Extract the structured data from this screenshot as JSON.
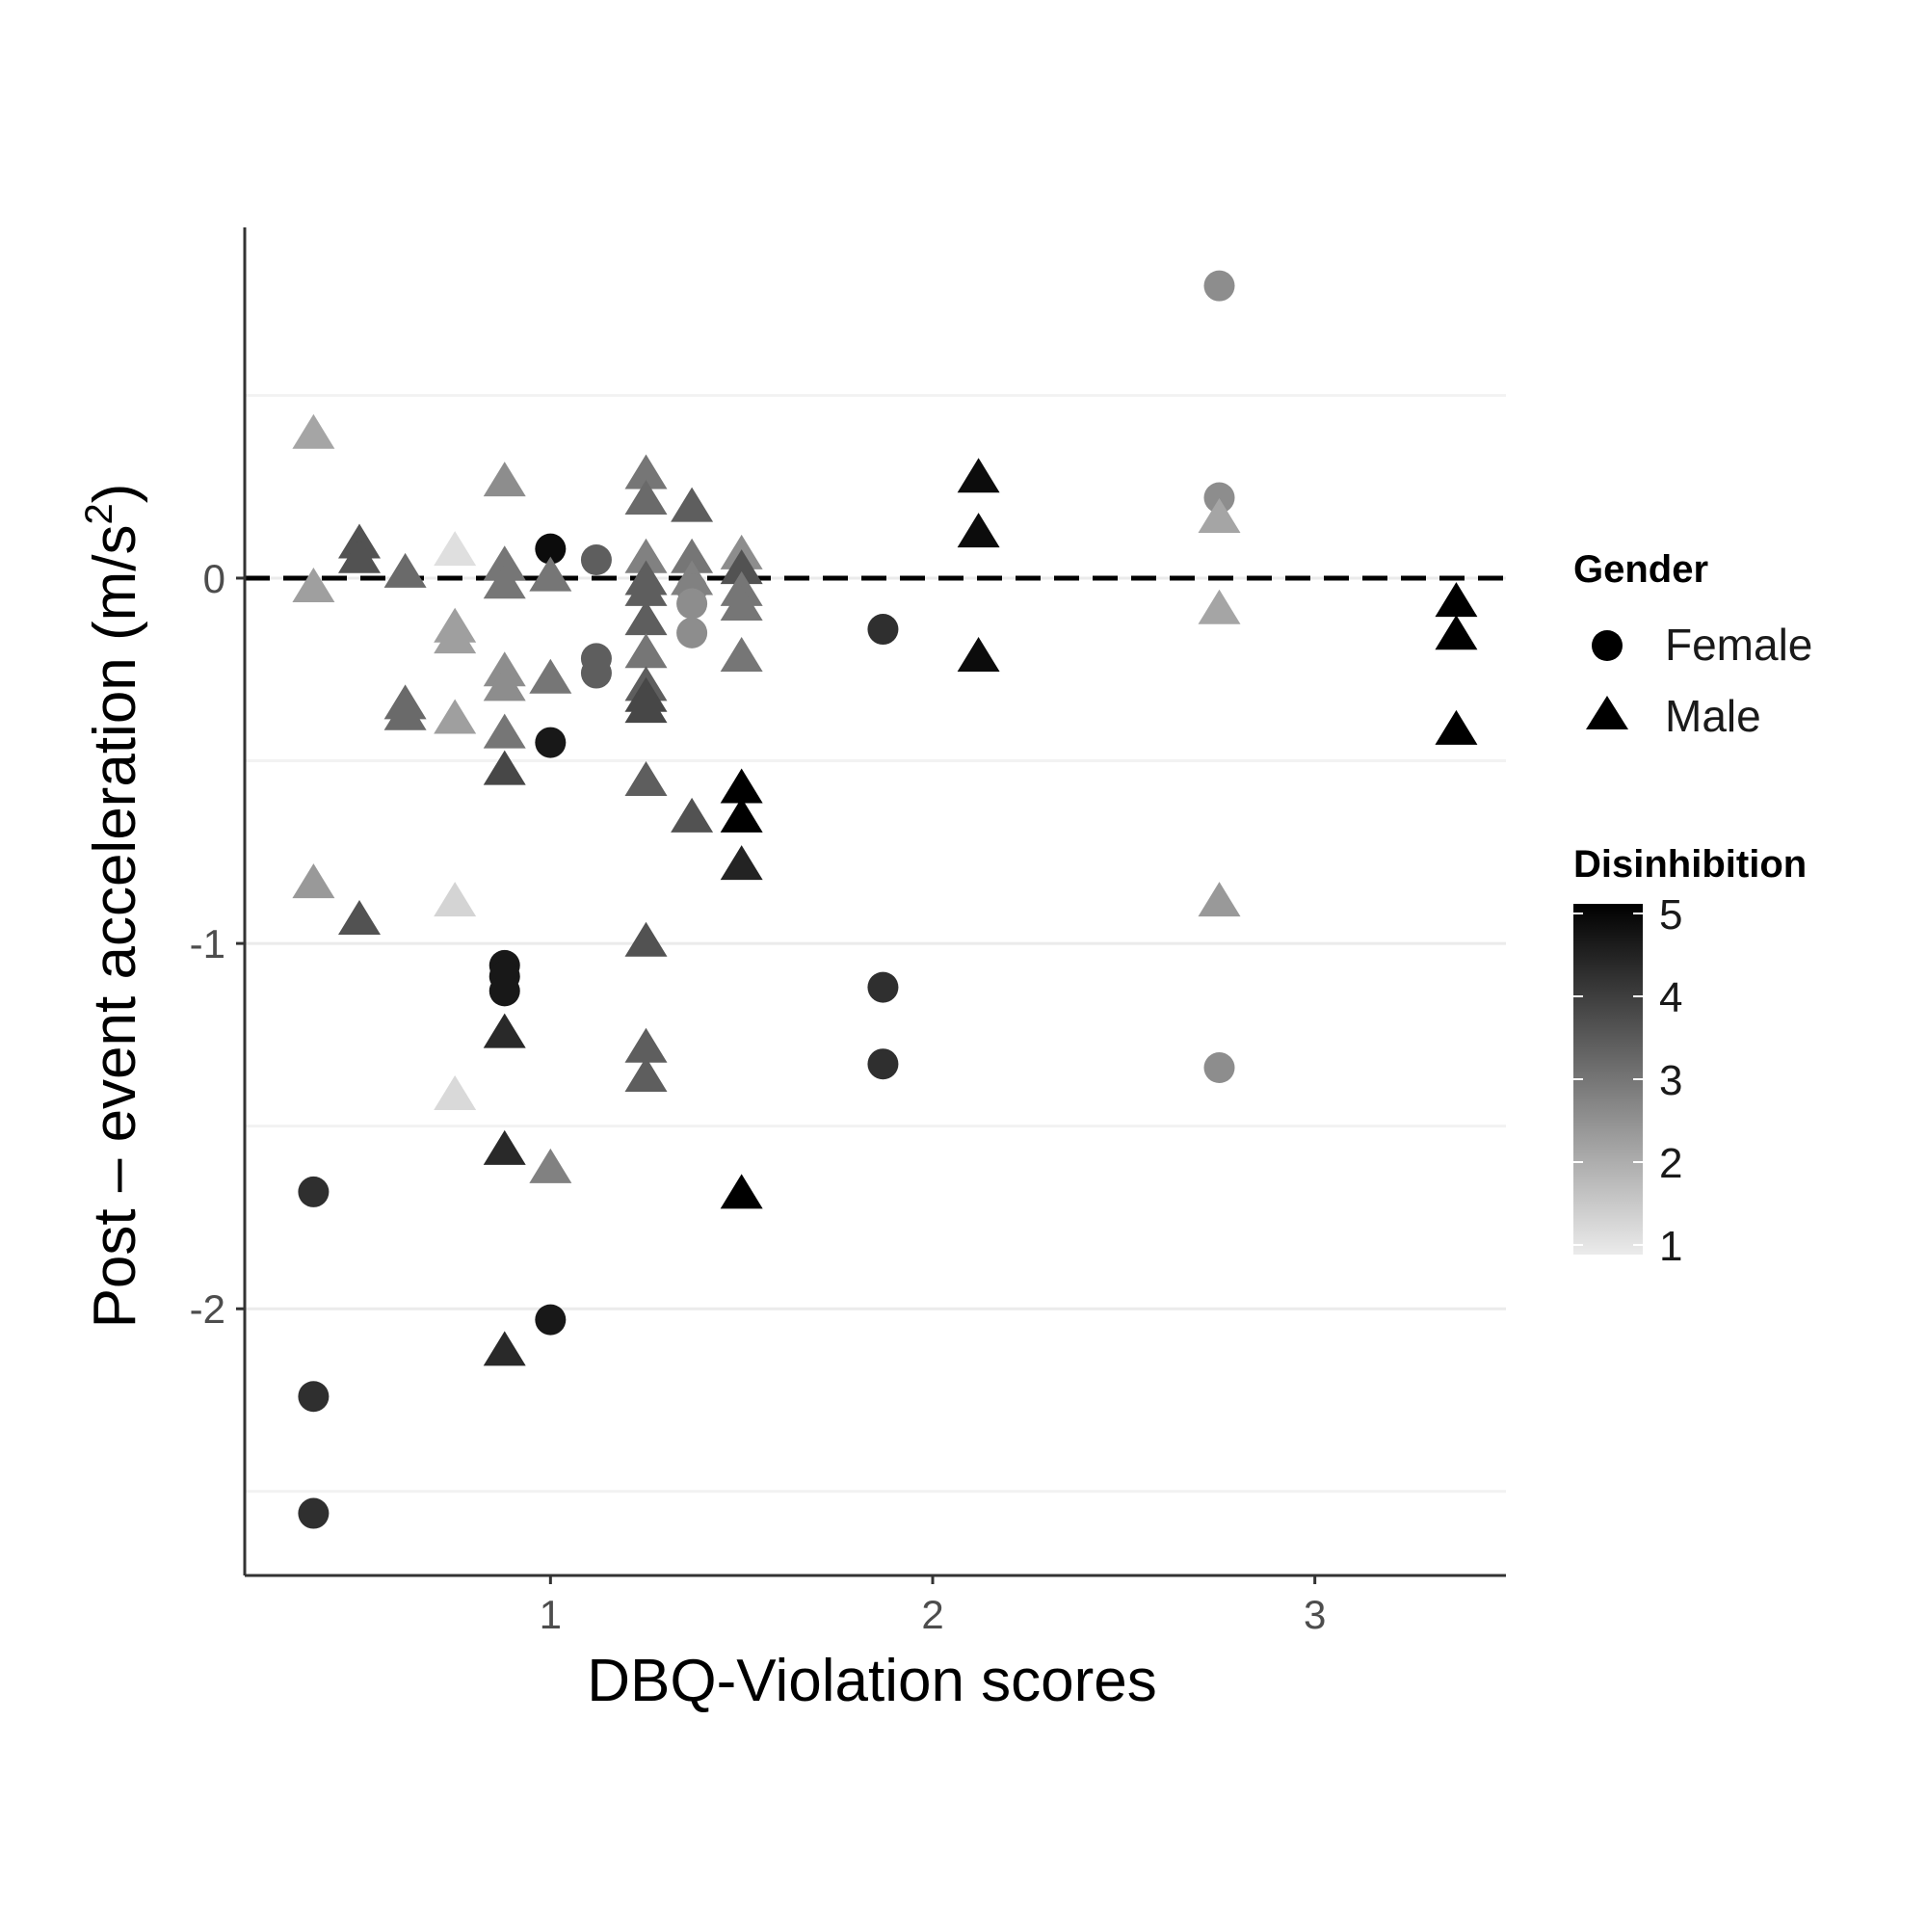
{
  "chart_data": {
    "type": "scatter",
    "title": "",
    "xlabel": "DBQ-Violation scores",
    "ylabel_main": "Post – event acceleration (m/s",
    "ylabel_sup": "2",
    "ylabel_close": ")",
    "xlim": [
      0.2,
      3.5
    ],
    "ylim": [
      -2.73,
      0.96
    ],
    "x_ticks": [
      1,
      2,
      3
    ],
    "x_tick_labels": [
      "1",
      "2",
      "3"
    ],
    "y_ticks": [
      0,
      -1,
      -2
    ],
    "y_tick_labels": [
      "0",
      "-1",
      "-2"
    ],
    "y_minor_gridlines": [
      0.5,
      -0.5,
      -1.5,
      -2.5
    ],
    "reference_line": {
      "y": 0,
      "style": "dashed"
    },
    "grid": "horizontal only",
    "legend_placement": "right",
    "legend": {
      "shape_title": "Gender",
      "shape_items": [
        {
          "label": "Female",
          "shape": "circle"
        },
        {
          "label": "Male",
          "shape": "triangle"
        }
      ],
      "color_title": "Disinhibition",
      "color_ticks": [
        "5",
        "4",
        "3",
        "2",
        "1"
      ],
      "color_range": [
        1,
        5
      ],
      "color_low": "#ebebeb",
      "color_high": "#000000"
    },
    "points": [
      {
        "x": 0.38,
        "y": 0.39,
        "g": "Male",
        "d": 2.2
      },
      {
        "x": 0.38,
        "y": -0.03,
        "g": "Male",
        "d": 2.3
      },
      {
        "x": 0.38,
        "y": -0.84,
        "g": "Male",
        "d": 2.4
      },
      {
        "x": 0.38,
        "y": -1.68,
        "g": "Female",
        "d": 4.2
      },
      {
        "x": 0.38,
        "y": -2.24,
        "g": "Female",
        "d": 4.2
      },
      {
        "x": 0.38,
        "y": -2.56,
        "g": "Female",
        "d": 4.2
      },
      {
        "x": 0.5,
        "y": 0.09,
        "g": "Male",
        "d": 3.6
      },
      {
        "x": 0.5,
        "y": 0.05,
        "g": "Male",
        "d": 3.6
      },
      {
        "x": 0.5,
        "y": -0.94,
        "g": "Male",
        "d": 3.6
      },
      {
        "x": 0.62,
        "y": 0.01,
        "g": "Male",
        "d": 3.2
      },
      {
        "x": 0.62,
        "y": -0.35,
        "g": "Male",
        "d": 3.2
      },
      {
        "x": 0.62,
        "y": -0.38,
        "g": "Male",
        "d": 3.2
      },
      {
        "x": 0.75,
        "y": 0.07,
        "g": "Male",
        "d": 1.2
      },
      {
        "x": 0.75,
        "y": -0.14,
        "g": "Male",
        "d": 2.3
      },
      {
        "x": 0.75,
        "y": -0.17,
        "g": "Male",
        "d": 2.3
      },
      {
        "x": 0.75,
        "y": -0.39,
        "g": "Male",
        "d": 2.3
      },
      {
        "x": 0.75,
        "y": -0.89,
        "g": "Male",
        "d": 1.4
      },
      {
        "x": 0.75,
        "y": -1.42,
        "g": "Male",
        "d": 1.3
      },
      {
        "x": 0.88,
        "y": 0.26,
        "g": "Male",
        "d": 2.6
      },
      {
        "x": 0.88,
        "y": 0.03,
        "g": "Male",
        "d": 3.0
      },
      {
        "x": 0.88,
        "y": -0.02,
        "g": "Male",
        "d": 3.0
      },
      {
        "x": 0.88,
        "y": -0.26,
        "g": "Male",
        "d": 2.6
      },
      {
        "x": 0.88,
        "y": -0.3,
        "g": "Male",
        "d": 2.6
      },
      {
        "x": 0.88,
        "y": -0.43,
        "g": "Male",
        "d": 3.0
      },
      {
        "x": 0.88,
        "y": -0.53,
        "g": "Male",
        "d": 3.8
      },
      {
        "x": 0.88,
        "y": -1.06,
        "g": "Female",
        "d": 4.6
      },
      {
        "x": 0.88,
        "y": -1.09,
        "g": "Female",
        "d": 4.6
      },
      {
        "x": 0.88,
        "y": -1.13,
        "g": "Female",
        "d": 4.6
      },
      {
        "x": 0.88,
        "y": -1.25,
        "g": "Male",
        "d": 4.3
      },
      {
        "x": 0.88,
        "y": -1.57,
        "g": "Male",
        "d": 4.3
      },
      {
        "x": 0.88,
        "y": -2.12,
        "g": "Male",
        "d": 4.3
      },
      {
        "x": 1.0,
        "y": 0.08,
        "g": "Female",
        "d": 4.8
      },
      {
        "x": 1.0,
        "y": 0.0,
        "g": "Male",
        "d": 3.0
      },
      {
        "x": 1.0,
        "y": -0.28,
        "g": "Male",
        "d": 3.0
      },
      {
        "x": 1.0,
        "y": -0.45,
        "g": "Female",
        "d": 4.6
      },
      {
        "x": 1.0,
        "y": -1.62,
        "g": "Male",
        "d": 2.8
      },
      {
        "x": 1.0,
        "y": -2.03,
        "g": "Female",
        "d": 4.6
      },
      {
        "x": 1.12,
        "y": 0.05,
        "g": "Female",
        "d": 3.4
      },
      {
        "x": 1.12,
        "y": -0.22,
        "g": "Female",
        "d": 3.4
      },
      {
        "x": 1.12,
        "y": -0.26,
        "g": "Female",
        "d": 3.4
      },
      {
        "x": 1.25,
        "y": 0.28,
        "g": "Male",
        "d": 3.0
      },
      {
        "x": 1.25,
        "y": 0.21,
        "g": "Male",
        "d": 3.2
      },
      {
        "x": 1.25,
        "y": 0.05,
        "g": "Male",
        "d": 2.8
      },
      {
        "x": 1.25,
        "y": -0.01,
        "g": "Male",
        "d": 3.4
      },
      {
        "x": 1.25,
        "y": -0.04,
        "g": "Male",
        "d": 3.4
      },
      {
        "x": 1.25,
        "y": -0.12,
        "g": "Male",
        "d": 3.4
      },
      {
        "x": 1.25,
        "y": -0.21,
        "g": "Male",
        "d": 3.0
      },
      {
        "x": 1.25,
        "y": -0.3,
        "g": "Male",
        "d": 3.4
      },
      {
        "x": 1.25,
        "y": -0.33,
        "g": "Male",
        "d": 3.8
      },
      {
        "x": 1.25,
        "y": -0.36,
        "g": "Male",
        "d": 3.8
      },
      {
        "x": 1.25,
        "y": -0.56,
        "g": "Male",
        "d": 3.4
      },
      {
        "x": 1.25,
        "y": -1.0,
        "g": "Male",
        "d": 3.6
      },
      {
        "x": 1.25,
        "y": -1.29,
        "g": "Male",
        "d": 3.4
      },
      {
        "x": 1.25,
        "y": -1.37,
        "g": "Male",
        "d": 3.4
      },
      {
        "x": 1.37,
        "y": 0.19,
        "g": "Male",
        "d": 3.4
      },
      {
        "x": 1.37,
        "y": 0.05,
        "g": "Male",
        "d": 3.0
      },
      {
        "x": 1.37,
        "y": -0.01,
        "g": "Male",
        "d": 2.8
      },
      {
        "x": 1.37,
        "y": -0.03,
        "g": "Female",
        "d": 2.8
      },
      {
        "x": 1.37,
        "y": -0.07,
        "g": "Female",
        "d": 2.6
      },
      {
        "x": 1.37,
        "y": -0.15,
        "g": "Female",
        "d": 2.6
      },
      {
        "x": 1.37,
        "y": -0.66,
        "g": "Male",
        "d": 3.6
      },
      {
        "x": 1.5,
        "y": 0.06,
        "g": "Male",
        "d": 2.6
      },
      {
        "x": 1.5,
        "y": 0.02,
        "g": "Male",
        "d": 3.6
      },
      {
        "x": 1.5,
        "y": -0.04,
        "g": "Male",
        "d": 3.0
      },
      {
        "x": 1.5,
        "y": -0.08,
        "g": "Male",
        "d": 3.0
      },
      {
        "x": 1.5,
        "y": -0.22,
        "g": "Male",
        "d": 3.0
      },
      {
        "x": 1.5,
        "y": -0.58,
        "g": "Male",
        "d": 5.0
      },
      {
        "x": 1.5,
        "y": -0.66,
        "g": "Male",
        "d": 5.0
      },
      {
        "x": 1.5,
        "y": -0.79,
        "g": "Male",
        "d": 4.4
      },
      {
        "x": 1.5,
        "y": -1.69,
        "g": "Male",
        "d": 5.0
      },
      {
        "x": 1.87,
        "y": -0.14,
        "g": "Female",
        "d": 4.2
      },
      {
        "x": 1.87,
        "y": -1.12,
        "g": "Female",
        "d": 4.2
      },
      {
        "x": 1.87,
        "y": -1.33,
        "g": "Female",
        "d": 4.2
      },
      {
        "x": 2.12,
        "y": 0.27,
        "g": "Male",
        "d": 4.8
      },
      {
        "x": 2.12,
        "y": 0.12,
        "g": "Male",
        "d": 4.8
      },
      {
        "x": 2.12,
        "y": -0.22,
        "g": "Male",
        "d": 4.8
      },
      {
        "x": 2.75,
        "y": 0.8,
        "g": "Female",
        "d": 2.6
      },
      {
        "x": 2.75,
        "y": 0.22,
        "g": "Female",
        "d": 2.6
      },
      {
        "x": 2.75,
        "y": 0.16,
        "g": "Male",
        "d": 2.2
      },
      {
        "x": 2.75,
        "y": -0.09,
        "g": "Male",
        "d": 2.2
      },
      {
        "x": 2.75,
        "y": -0.89,
        "g": "Male",
        "d": 2.4
      },
      {
        "x": 2.75,
        "y": -1.34,
        "g": "Female",
        "d": 2.6
      },
      {
        "x": 3.37,
        "y": -0.07,
        "g": "Male",
        "d": 5.0
      },
      {
        "x": 3.37,
        "y": -0.16,
        "g": "Male",
        "d": 5.0
      },
      {
        "x": 3.37,
        "y": -0.42,
        "g": "Male",
        "d": 5.0
      }
    ]
  }
}
